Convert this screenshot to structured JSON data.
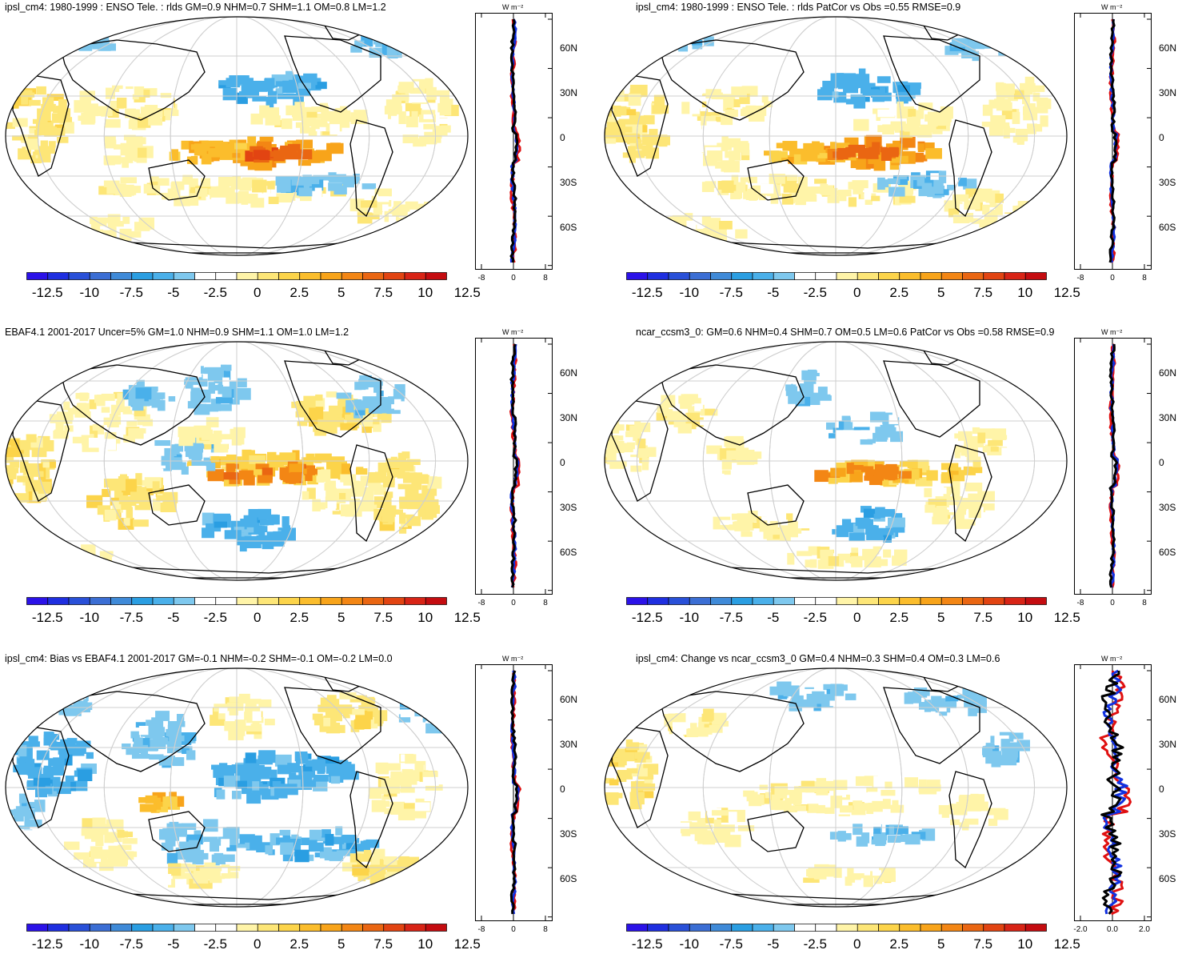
{
  "panels": [
    {
      "title": "ipsl_cm4: 1980-1999 : ENSO Tele. : rlds GM=0.9 NHM=0.7 SHM=1.1 OM=0.8 LM=1.2",
      "zonal_ticks": [
        "-8",
        "0",
        "8"
      ],
      "variant": "model"
    },
    {
      "title": "ipsl_cm4: 1980-1999 : ENSO Tele. : rlds PatCor vs Obs =0.55 RMSE=0.9",
      "zonal_ticks": [
        "-8",
        "0",
        "8"
      ],
      "variant": "model"
    },
    {
      "title": "EBAF4.1 2001-2017 Uncer=5% GM=1.0 NHM=0.9 SHM=1.1 OM=1.0 LM=1.2",
      "zonal_ticks": [
        "-8",
        "0",
        "8"
      ],
      "variant": "obs"
    },
    {
      "title": "ncar_ccsm3_0: GM=0.6 NHM=0.4 SHM=0.7 OM=0.5 LM=0.6 PatCor vs Obs =0.58 RMSE=0.9",
      "zonal_ticks": [
        "-8",
        "0",
        "8"
      ],
      "variant": "ncar"
    },
    {
      "title": "ipsl_cm4: Bias vs EBAF4.1 2001-2017 GM=-0.1 NHM=-0.2 SHM=-0.1 OM=-0.2 LM=0.0",
      "zonal_ticks": [
        "-8",
        "0",
        "8"
      ],
      "variant": "bias"
    },
    {
      "title": "ipsl_cm4: Change vs ncar_ccsm3_0 GM=0.4 NHM=0.3 SHM=0.4 OM=0.3 LM=0.6",
      "zonal_ticks": [
        "-2.0",
        "0.0",
        "2.0"
      ],
      "variant": "change"
    }
  ],
  "colorbar": {
    "labels": [
      "-12.5",
      "-10",
      "-7.5",
      "-5",
      "-2.5",
      "0",
      "2.5",
      "5",
      "7.5",
      "10",
      "12.5"
    ],
    "colors": [
      "#2b12e8",
      "#1f2fe0",
      "#2950d8",
      "#3b6ed4",
      "#3f8ad8",
      "#2a9ee2",
      "#4ab0ea",
      "#7ec8ee",
      "#ffffff",
      "#ffffff",
      "#fff4a8",
      "#fde677",
      "#fcd44a",
      "#fbbd2c",
      "#f8a41a",
      "#f38614",
      "#ea6612",
      "#e24412",
      "#d82416",
      "#c40c10"
    ]
  },
  "zonal_units": "W m⁻²",
  "lat_labels": [
    "60N",
    "30N",
    "0",
    "30S",
    "60S"
  ]
}
